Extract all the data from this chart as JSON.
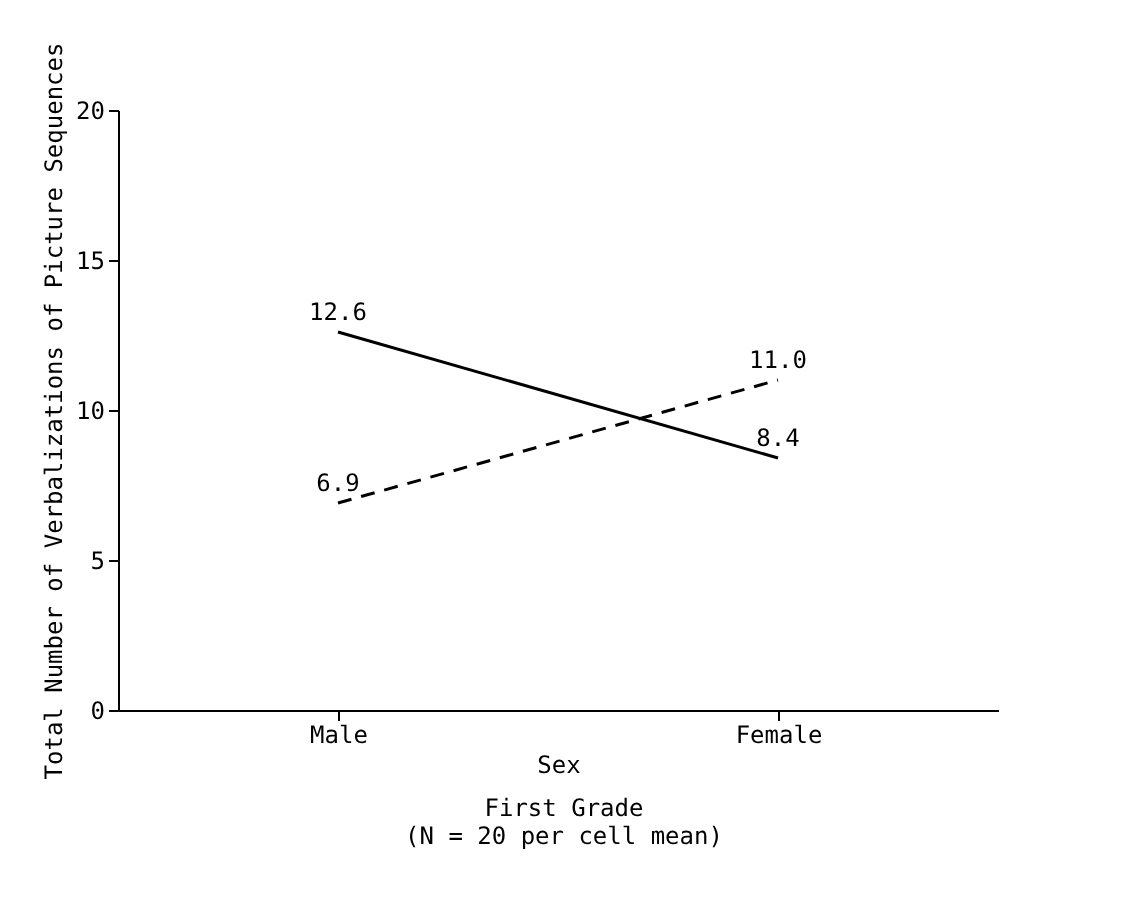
{
  "chart_data": {
    "type": "line",
    "categories": [
      "Male",
      "Female"
    ],
    "series": [
      {
        "color": "#000000",
        "line_style": "solid",
        "values": [
          12.6,
          8.4
        ]
      },
      {
        "color": "#000000",
        "line_style": "dashed",
        "values": [
          6.9,
          11.0
        ]
      }
    ],
    "xlabel": "Sex",
    "ylabel": "Total Number of Verbalizations of Picture Sequences",
    "annotations": [
      "First Grade",
      "(N = 20 per cell mean)"
    ],
    "ylim": [
      0,
      20
    ],
    "yticks": [
      0,
      5,
      10,
      15,
      20
    ],
    "value_labels": [
      [
        "12.6",
        "8.4"
      ],
      [
        "6.9",
        "11.0"
      ]
    ],
    "marker": "none"
  }
}
